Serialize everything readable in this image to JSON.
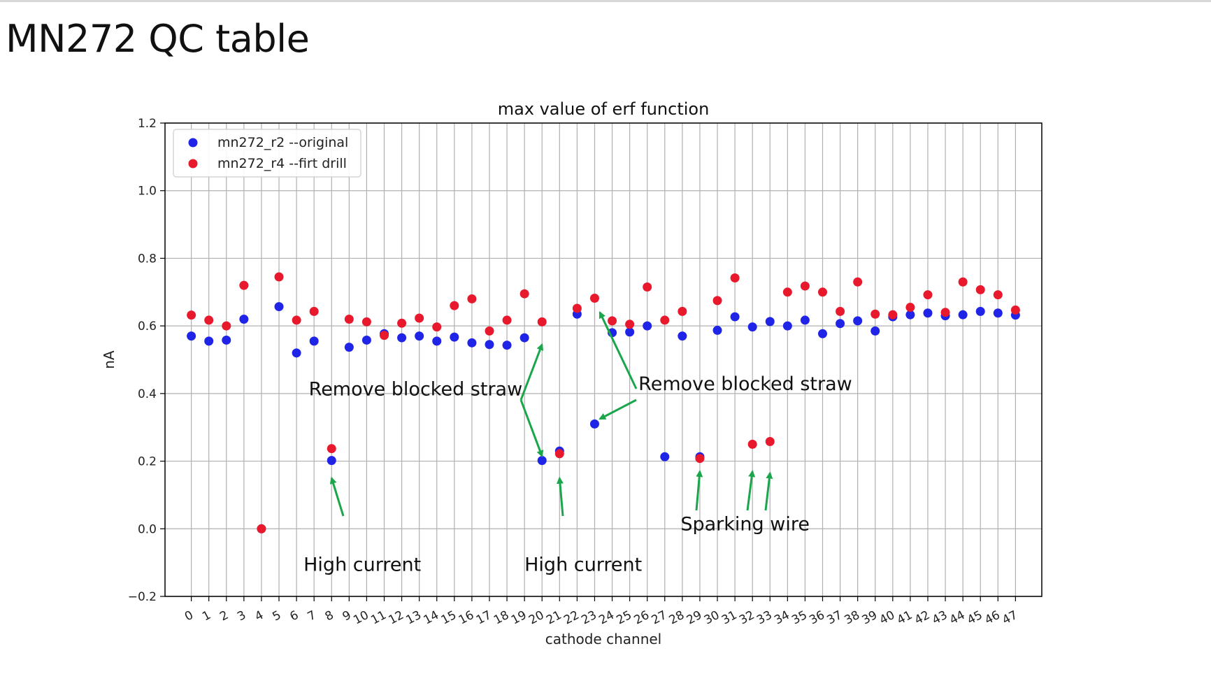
{
  "page": {
    "title": "MN272 QC table"
  },
  "colors": {
    "series1": "#1f24e6",
    "series2": "#e8192c",
    "arrow": "#1aa64a"
  },
  "chart_data": {
    "type": "scatter",
    "title": "max value of erf function",
    "xlabel": "cathode channel",
    "ylabel": "nA",
    "ylim": [
      -0.2,
      1.2
    ],
    "xlim": [
      -1.5,
      48.5
    ],
    "yticks": [
      "−0.2",
      "0.0",
      "0.2",
      "0.4",
      "0.6",
      "0.8",
      "1.0",
      "1.2"
    ],
    "ytick_values": [
      -0.2,
      0.0,
      0.2,
      0.4,
      0.6,
      0.8,
      1.0,
      1.2
    ],
    "xticks": [
      "0",
      "1",
      "2",
      "3",
      "4",
      "5",
      "6",
      "7",
      "8",
      "9",
      "10",
      "11",
      "12",
      "13",
      "14",
      "15",
      "16",
      "17",
      "18",
      "19",
      "20",
      "21",
      "22",
      "23",
      "24",
      "25",
      "26",
      "27",
      "28",
      "29",
      "30",
      "31",
      "32",
      "33",
      "34",
      "35",
      "36",
      "37",
      "38",
      "39",
      "40",
      "41",
      "42",
      "43",
      "44",
      "45",
      "46",
      "47"
    ],
    "grid": true,
    "legend_position": "top-left",
    "series": [
      {
        "name": "mn272_r2 --original",
        "x": [
          0,
          1,
          2,
          3,
          4,
          5,
          6,
          7,
          8,
          9,
          10,
          11,
          12,
          13,
          14,
          15,
          16,
          17,
          18,
          19,
          20,
          21,
          22,
          23,
          24,
          25,
          26,
          27,
          28,
          29,
          30,
          31,
          32,
          33,
          34,
          35,
          36,
          37,
          38,
          39,
          40,
          41,
          42,
          43,
          44,
          45,
          46,
          47
        ],
        "y": [
          0.57,
          0.555,
          0.558,
          0.62,
          0.0,
          0.657,
          0.52,
          0.555,
          0.202,
          0.537,
          0.558,
          0.577,
          0.565,
          0.57,
          0.555,
          0.567,
          0.55,
          0.545,
          0.543,
          0.565,
          0.202,
          0.23,
          0.635,
          0.31,
          0.58,
          0.582,
          0.6,
          0.213,
          0.57,
          0.213,
          0.587,
          0.627,
          0.597,
          0.613,
          0.6,
          0.617,
          0.577,
          0.607,
          0.615,
          0.585,
          0.627,
          0.633,
          0.638,
          0.63,
          0.633,
          0.643,
          0.638,
          0.632
        ]
      },
      {
        "name": "mn272_r4 --firt drill",
        "x": [
          0,
          1,
          2,
          3,
          4,
          5,
          6,
          7,
          8,
          9,
          10,
          11,
          12,
          13,
          14,
          15,
          16,
          17,
          18,
          19,
          20,
          21,
          22,
          23,
          24,
          25,
          26,
          27,
          28,
          29,
          30,
          31,
          32,
          33,
          34,
          35,
          36,
          37,
          38,
          39,
          40,
          41,
          42,
          43,
          44,
          45,
          46,
          47
        ],
        "y": [
          0.632,
          0.617,
          0.6,
          0.72,
          0.0,
          0.745,
          0.617,
          0.643,
          0.237,
          0.62,
          0.612,
          0.572,
          0.608,
          0.623,
          0.597,
          0.66,
          0.68,
          0.585,
          0.617,
          0.695,
          0.612,
          0.222,
          0.652,
          0.682,
          0.615,
          0.605,
          0.715,
          0.617,
          0.643,
          0.208,
          0.675,
          0.742,
          0.25,
          0.258,
          0.7,
          0.718,
          0.7,
          0.643,
          0.73,
          0.635,
          0.633,
          0.655,
          0.692,
          0.64,
          0.73,
          0.707,
          0.692,
          0.647
        ]
      }
    ],
    "annotations": [
      {
        "text": "Remove blocked straw",
        "x": 6.7,
        "y": 0.395,
        "arrows_to": [
          [
            20,
            0.545
          ],
          [
            20,
            0.215
          ]
        ]
      },
      {
        "text": "Remove blocked straw",
        "x": 25.5,
        "y": 0.41,
        "arrows_to": [
          [
            23.3,
            0.64
          ],
          [
            23.3,
            0.325
          ]
        ]
      },
      {
        "text": "High current",
        "x": 6.4,
        "y": -0.125,
        "arrows_to": [
          [
            8,
            0.15
          ]
        ]
      },
      {
        "text": "High current",
        "x": 19,
        "y": -0.125,
        "arrows_to": [
          [
            21,
            0.15
          ]
        ]
      },
      {
        "text": "Sparking wire",
        "x": 27.9,
        "y": -0.005,
        "arrows_to": [
          [
            29,
            0.17
          ],
          [
            32,
            0.17
          ],
          [
            33,
            0.165
          ]
        ]
      }
    ]
  }
}
